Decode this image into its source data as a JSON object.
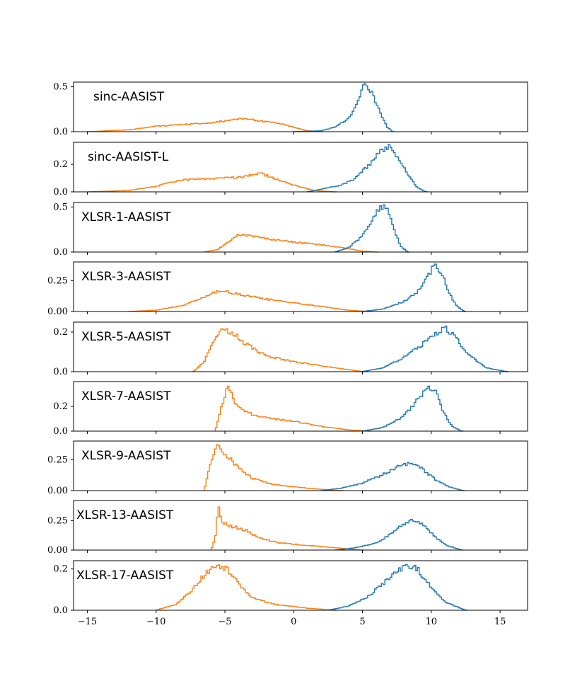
{
  "chart_data": {
    "type": "histogram",
    "layout": "9 stacked panels sharing x axis",
    "xlim": [
      -16,
      17
    ],
    "xticks": [
      -15,
      -10,
      -5,
      0,
      5,
      10,
      15
    ],
    "xtick_labels": [
      "−15",
      "−10",
      "−5",
      "0",
      "5",
      "10",
      "15"
    ],
    "colors": {
      "bonafide": "#1f77b4",
      "spoof": "#ff7f0e"
    },
    "grid": false,
    "legend": "none",
    "panels": [
      {
        "title": "sinc-AASIST",
        "ylim": [
          0,
          0.55
        ],
        "yticks": [
          0,
          0.5
        ],
        "ytick_labels": [
          "0.0",
          "0.5"
        ],
        "series": [
          {
            "color": "#ff7f0e",
            "points": [
              [
                -15,
                0
              ],
              [
                -12,
                0.02
              ],
              [
                -10,
                0.06
              ],
              [
                -8,
                0.08
              ],
              [
                -6,
                0.1
              ],
              [
                -4.5,
                0.13
              ],
              [
                -3.5,
                0.15
              ],
              [
                -2.5,
                0.12
              ],
              [
                -1,
                0.09
              ],
              [
                0,
                0.05
              ],
              [
                1,
                0.01
              ],
              [
                2,
                0
              ]
            ]
          },
          {
            "color": "#1f77b4",
            "points": [
              [
                0,
                0
              ],
              [
                2,
                0.01
              ],
              [
                3,
                0.05
              ],
              [
                4,
                0.15
              ],
              [
                4.5,
                0.28
              ],
              [
                5,
                0.48
              ],
              [
                5.3,
                0.53
              ],
              [
                5.8,
                0.4
              ],
              [
                6.3,
                0.2
              ],
              [
                6.8,
                0.05
              ],
              [
                7.2,
                0
              ]
            ]
          }
        ]
      },
      {
        "title": "sinc-AASIST-L",
        "ylim": [
          0,
          0.36
        ],
        "yticks": [
          0,
          0.2
        ],
        "ytick_labels": [
          "0.0",
          "0.2"
        ],
        "series": [
          {
            "color": "#ff7f0e",
            "points": [
              [
                -15,
                0
              ],
              [
                -12,
                0.01
              ],
              [
                -10,
                0.04
              ],
              [
                -8.5,
                0.08
              ],
              [
                -7.5,
                0.09
              ],
              [
                -5,
                0.1
              ],
              [
                -3.5,
                0.11
              ],
              [
                -2.5,
                0.14
              ],
              [
                -1.5,
                0.1
              ],
              [
                0,
                0.05
              ],
              [
                1.5,
                0.01
              ],
              [
                3,
                0
              ]
            ]
          },
          {
            "color": "#1f77b4",
            "points": [
              [
                1,
                0
              ],
              [
                2,
                0.02
              ],
              [
                3.5,
                0.05
              ],
              [
                4.5,
                0.1
              ],
              [
                5.5,
                0.2
              ],
              [
                6.3,
                0.29
              ],
              [
                7,
                0.33
              ],
              [
                7.7,
                0.24
              ],
              [
                8.3,
                0.12
              ],
              [
                9,
                0.03
              ],
              [
                9.6,
                0
              ]
            ]
          }
        ]
      },
      {
        "title": "XLSR-1-AASIST",
        "ylim": [
          0,
          0.55
        ],
        "yticks": [
          0,
          0.5
        ],
        "ytick_labels": [
          "0.0",
          "0.5"
        ],
        "series": [
          {
            "color": "#ff7f0e",
            "points": [
              [
                -6.5,
                0
              ],
              [
                -5.5,
                0.03
              ],
              [
                -4.7,
                0.12
              ],
              [
                -4,
                0.2
              ],
              [
                -3.3,
                0.18
              ],
              [
                -2,
                0.15
              ],
              [
                0,
                0.11
              ],
              [
                2,
                0.08
              ],
              [
                3.5,
                0.05
              ],
              [
                5,
                0.01
              ],
              [
                6,
                0
              ]
            ]
          },
          {
            "color": "#1f77b4",
            "points": [
              [
                3,
                0
              ],
              [
                4,
                0.05
              ],
              [
                5,
                0.18
              ],
              [
                5.8,
                0.38
              ],
              [
                6.3,
                0.5
              ],
              [
                6.8,
                0.48
              ],
              [
                7.3,
                0.25
              ],
              [
                7.8,
                0.06
              ],
              [
                8.3,
                0
              ]
            ]
          }
        ]
      },
      {
        "title": "XLSR-3-AASIST",
        "ylim": [
          0,
          0.4
        ],
        "yticks": [
          0,
          0.25
        ],
        "ytick_labels": [
          "0.00",
          "0.25"
        ],
        "series": [
          {
            "color": "#ff7f0e",
            "points": [
              [
                -12,
                0
              ],
              [
                -10,
                0.01
              ],
              [
                -8,
                0.05
              ],
              [
                -6.5,
                0.12
              ],
              [
                -5.3,
                0.17
              ],
              [
                -4,
                0.14
              ],
              [
                -2,
                0.1
              ],
              [
                0,
                0.07
              ],
              [
                2,
                0.04
              ],
              [
                4,
                0.01
              ],
              [
                5.5,
                0
              ]
            ]
          },
          {
            "color": "#1f77b4",
            "points": [
              [
                5,
                0
              ],
              [
                6.5,
                0.02
              ],
              [
                8,
                0.08
              ],
              [
                9,
                0.16
              ],
              [
                9.8,
                0.3
              ],
              [
                10.3,
                0.38
              ],
              [
                10.8,
                0.3
              ],
              [
                11.3,
                0.15
              ],
              [
                11.8,
                0.05
              ],
              [
                12.4,
                0
              ]
            ]
          }
        ]
      },
      {
        "title": "XLSR-5-AASIST",
        "ylim": [
          0,
          0.25
        ],
        "yticks": [
          0,
          0.2
        ],
        "ytick_labels": [
          "0.0",
          "0.2"
        ],
        "series": [
          {
            "color": "#ff7f0e",
            "points": [
              [
                -7.3,
                0
              ],
              [
                -6.5,
                0.05
              ],
              [
                -5.8,
                0.16
              ],
              [
                -5.2,
                0.22
              ],
              [
                -4.5,
                0.2
              ],
              [
                -3.5,
                0.14
              ],
              [
                -2,
                0.08
              ],
              [
                0,
                0.05
              ],
              [
                2,
                0.03
              ],
              [
                4,
                0.01
              ],
              [
                5,
                0
              ]
            ]
          },
          {
            "color": "#1f77b4",
            "points": [
              [
                5,
                0
              ],
              [
                6.5,
                0.02
              ],
              [
                8,
                0.07
              ],
              [
                9.2,
                0.13
              ],
              [
                10.3,
                0.19
              ],
              [
                11,
                0.22
              ],
              [
                11.8,
                0.17
              ],
              [
                12.8,
                0.08
              ],
              [
                14,
                0.02
              ],
              [
                15.5,
                0
              ]
            ]
          }
        ]
      },
      {
        "title": "XLSR-7-AASIST",
        "ylim": [
          0,
          0.4
        ],
        "yticks": [
          0,
          0.2
        ],
        "ytick_labels": [
          "0.0",
          "0.2"
        ],
        "series": [
          {
            "color": "#ff7f0e",
            "points": [
              [
                -5.7,
                0
              ],
              [
                -5.3,
                0.18
              ],
              [
                -4.8,
                0.36
              ],
              [
                -4.2,
                0.22
              ],
              [
                -3,
                0.13
              ],
              [
                -1.5,
                0.1
              ],
              [
                0,
                0.08
              ],
              [
                2,
                0.04
              ],
              [
                4,
                0.01
              ],
              [
                5.5,
                0
              ]
            ]
          },
          {
            "color": "#1f77b4",
            "points": [
              [
                5,
                0
              ],
              [
                6.5,
                0.03
              ],
              [
                8,
                0.12
              ],
              [
                9,
                0.25
              ],
              [
                9.8,
                0.35
              ],
              [
                10.3,
                0.32
              ],
              [
                10.9,
                0.15
              ],
              [
                11.5,
                0.04
              ],
              [
                12.2,
                0
              ]
            ]
          }
        ]
      },
      {
        "title": "XLSR-9-AASIST",
        "ylim": [
          0,
          0.4
        ],
        "yticks": [
          0,
          0.25
        ],
        "ytick_labels": [
          "0.00",
          "0.25"
        ],
        "series": [
          {
            "color": "#ff7f0e",
            "points": [
              [
                -6.5,
                0
              ],
              [
                -6.1,
                0.2
              ],
              [
                -5.6,
                0.38
              ],
              [
                -5,
                0.3
              ],
              [
                -4,
                0.18
              ],
              [
                -3,
                0.1
              ],
              [
                -1.5,
                0.05
              ],
              [
                0,
                0.03
              ],
              [
                2,
                0.01
              ],
              [
                3.5,
                0
              ]
            ]
          },
          {
            "color": "#1f77b4",
            "points": [
              [
                2,
                0
              ],
              [
                3.5,
                0.02
              ],
              [
                5,
                0.06
              ],
              [
                6.5,
                0.13
              ],
              [
                7.5,
                0.19
              ],
              [
                8.5,
                0.23
              ],
              [
                9.3,
                0.18
              ],
              [
                10.3,
                0.09
              ],
              [
                11.3,
                0.03
              ],
              [
                12.3,
                0
              ]
            ]
          }
        ]
      },
      {
        "title": "XLSR-13-AASIST",
        "ylim": [
          0,
          0.42
        ],
        "yticks": [
          0,
          0.25
        ],
        "ytick_labels": [
          "0.00",
          "0.25"
        ],
        "series": [
          {
            "color": "#ff7f0e",
            "points": [
              [
                -6,
                0
              ],
              [
                -5.7,
                0.1
              ],
              [
                -5.5,
                0.38
              ],
              [
                -5.2,
                0.24
              ],
              [
                -4.5,
                0.2
              ],
              [
                -3.5,
                0.17
              ],
              [
                -2.5,
                0.1
              ],
              [
                -1,
                0.06
              ],
              [
                1,
                0.04
              ],
              [
                3,
                0.02
              ],
              [
                5,
                0
              ]
            ]
          },
          {
            "color": "#1f77b4",
            "points": [
              [
                3,
                0
              ],
              [
                4.5,
                0.02
              ],
              [
                6,
                0.06
              ],
              [
                7,
                0.13
              ],
              [
                7.8,
                0.2
              ],
              [
                8.6,
                0.26
              ],
              [
                9.3,
                0.22
              ],
              [
                10.2,
                0.12
              ],
              [
                11.1,
                0.04
              ],
              [
                12.2,
                0
              ]
            ]
          }
        ]
      },
      {
        "title": "XLSR-17-AASIST",
        "ylim": [
          0,
          0.24
        ],
        "yticks": [
          0,
          0.2
        ],
        "ytick_labels": [
          "0.0",
          "0.2"
        ],
        "series": [
          {
            "color": "#ff7f0e",
            "points": [
              [
                -10,
                0
              ],
              [
                -8.5,
                0.03
              ],
              [
                -7.5,
                0.09
              ],
              [
                -6.5,
                0.17
              ],
              [
                -5.6,
                0.22
              ],
              [
                -4.8,
                0.2
              ],
              [
                -4,
                0.13
              ],
              [
                -3,
                0.06
              ],
              [
                -1.5,
                0.03
              ],
              [
                1,
                0.01
              ],
              [
                3,
                0
              ]
            ]
          },
          {
            "color": "#1f77b4",
            "points": [
              [
                2.5,
                0
              ],
              [
                4,
                0.02
              ],
              [
                5.5,
                0.07
              ],
              [
                6.5,
                0.13
              ],
              [
                7.5,
                0.19
              ],
              [
                8.2,
                0.22
              ],
              [
                9,
                0.2
              ],
              [
                10,
                0.11
              ],
              [
                11,
                0.04
              ],
              [
                12.5,
                0
              ]
            ]
          }
        ]
      }
    ]
  }
}
